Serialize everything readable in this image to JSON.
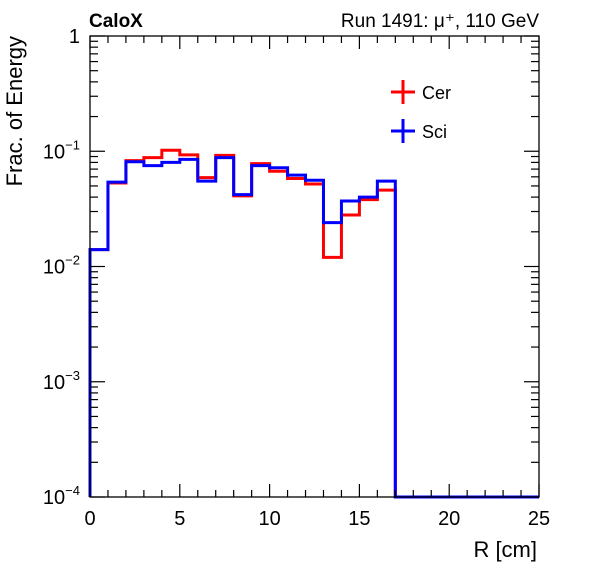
{
  "header": {
    "experiment": "CaloX",
    "run_info": "Run 1491:   μ⁺, 110 GeV"
  },
  "chart_data": {
    "type": "histogram",
    "xlabel": "R [cm]",
    "ylabel": "Frac. of Energy",
    "xlim": [
      0,
      25
    ],
    "ylim": [
      0.0001,
      1
    ],
    "yscale": "log",
    "x_ticks": [
      "0",
      "5",
      "10",
      "15",
      "20",
      "25"
    ],
    "y_ticks": [
      {
        "base": "10",
        "exp": "−4"
      },
      {
        "base": "10",
        "exp": "−3"
      },
      {
        "base": "10",
        "exp": "−2"
      },
      {
        "base": "10",
        "exp": "−1"
      },
      {
        "base": "1",
        "exp": ""
      }
    ],
    "bin_edges": [
      0,
      1,
      2,
      3,
      4,
      5,
      6,
      7,
      8,
      9,
      10,
      11,
      12,
      13,
      14,
      15,
      16,
      17,
      18,
      19,
      20,
      21,
      22,
      23,
      24,
      25
    ],
    "legend_position": "top-right",
    "series": [
      {
        "name": "Cer",
        "color": "#ff0000",
        "values": [
          0.014,
          0.053,
          0.083,
          0.088,
          0.102,
          0.093,
          0.059,
          0.092,
          0.041,
          0.078,
          0.067,
          0.058,
          0.052,
          0.012,
          0.028,
          0.038,
          0.046,
          0,
          0,
          0,
          0,
          0,
          0,
          0,
          0
        ]
      },
      {
        "name": "Sci",
        "color": "#0000ff",
        "values": [
          0.014,
          0.054,
          0.081,
          0.075,
          0.08,
          0.085,
          0.055,
          0.088,
          0.042,
          0.075,
          0.072,
          0.062,
          0.056,
          0.024,
          0.037,
          0.04,
          0.055,
          0,
          0,
          0,
          0,
          0,
          0,
          0,
          0
        ]
      }
    ]
  }
}
